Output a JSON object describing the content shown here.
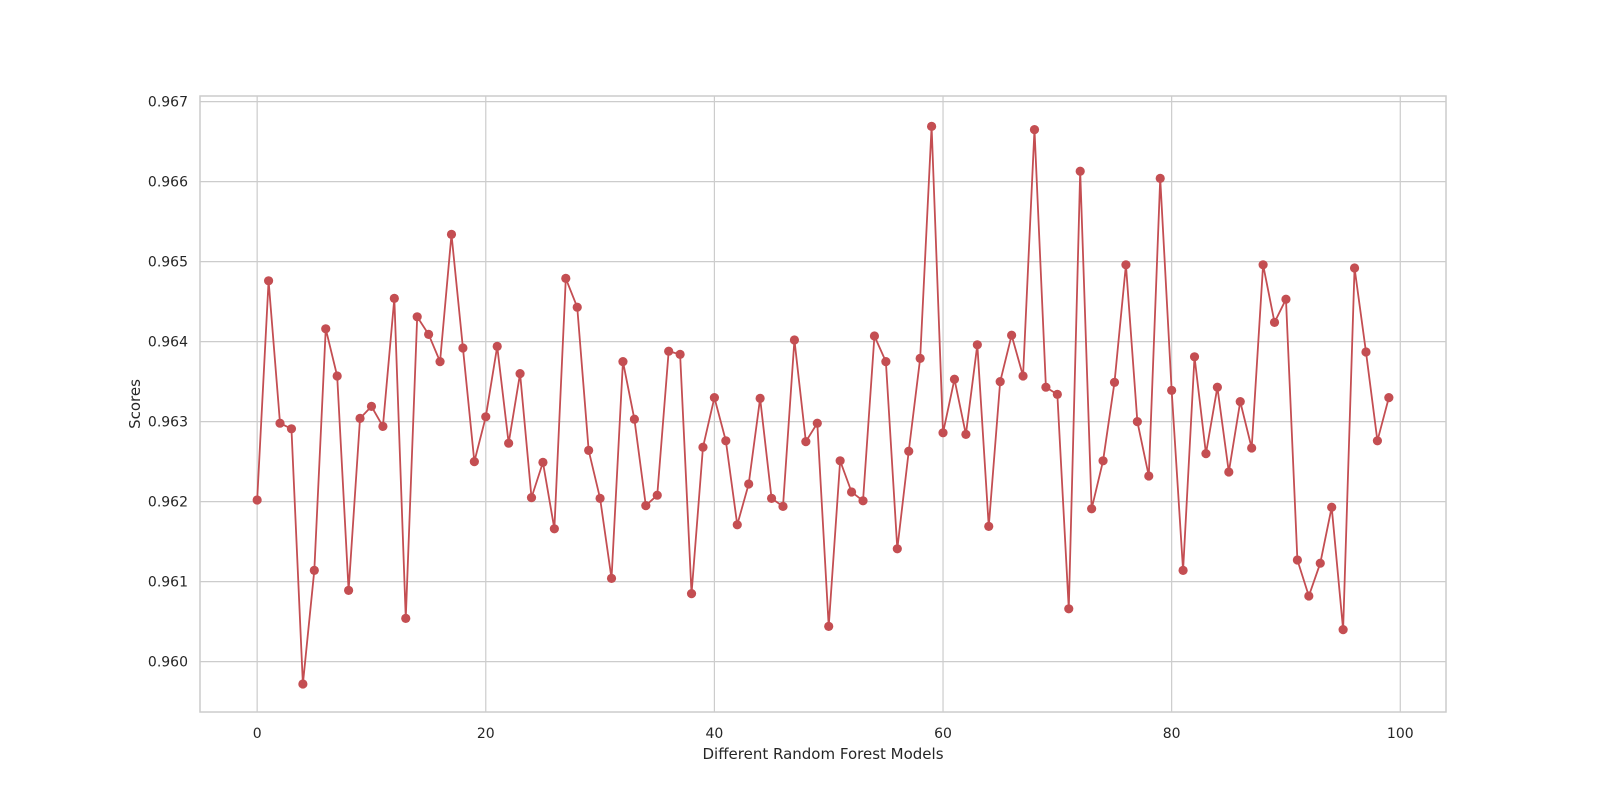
{
  "chart_data": {
    "type": "line",
    "title": "",
    "xlabel": "Different Random Forest Models",
    "ylabel": "Scores",
    "xlim": [
      -5,
      104
    ],
    "ylim": [
      0.95937,
      0.96707
    ],
    "xticks": [
      0,
      20,
      40,
      60,
      80,
      100
    ],
    "xtick_labels": [
      "0",
      "20",
      "40",
      "60",
      "80",
      "100"
    ],
    "yticks": [
      0.96,
      0.961,
      0.962,
      0.963,
      0.964,
      0.965,
      0.966,
      0.967
    ],
    "ytick_labels": [
      "0.960",
      "0.961",
      "0.962",
      "0.963",
      "0.964",
      "0.965",
      "0.966",
      "0.967"
    ],
    "grid": true,
    "legend": "none",
    "colors": {
      "series": "#c44e52",
      "grid": "#cccccc",
      "text": "#262626"
    },
    "x": [
      0,
      1,
      2,
      3,
      4,
      5,
      6,
      7,
      8,
      9,
      10,
      11,
      12,
      13,
      14,
      15,
      16,
      17,
      18,
      19,
      20,
      21,
      22,
      23,
      24,
      25,
      26,
      27,
      28,
      29,
      30,
      31,
      32,
      33,
      34,
      35,
      36,
      37,
      38,
      39,
      40,
      41,
      42,
      43,
      44,
      45,
      46,
      47,
      48,
      49,
      50,
      51,
      52,
      53,
      54,
      55,
      56,
      57,
      58,
      59,
      60,
      61,
      62,
      63,
      64,
      65,
      66,
      67,
      68,
      69,
      70,
      71,
      72,
      73,
      74,
      75,
      76,
      77,
      78,
      79,
      80,
      81,
      82,
      83,
      84,
      85,
      86,
      87,
      88,
      89,
      90,
      91,
      92,
      93,
      94,
      95,
      96,
      97,
      98,
      99
    ],
    "series": [
      {
        "values": [
          0.96202,
          0.96476,
          0.96298,
          0.96291,
          0.95972,
          0.96114,
          0.96416,
          0.96357,
          0.96089,
          0.96304,
          0.96319,
          0.96294,
          0.96454,
          0.96054,
          0.96431,
          0.96409,
          0.96375,
          0.96534,
          0.96392,
          0.9625,
          0.96306,
          0.96394,
          0.96273,
          0.9636,
          0.96205,
          0.96249,
          0.96166,
          0.96479,
          0.96443,
          0.96264,
          0.96204,
          0.96104,
          0.96375,
          0.96303,
          0.96195,
          0.96208,
          0.96388,
          0.96384,
          0.96085,
          0.96268,
          0.9633,
          0.96276,
          0.96171,
          0.96222,
          0.96329,
          0.96204,
          0.96194,
          0.96402,
          0.96275,
          0.96298,
          0.96044,
          0.96251,
          0.96212,
          0.96201,
          0.96407,
          0.96375,
          0.96141,
          0.96263,
          0.96379,
          0.96669,
          0.96286,
          0.96353,
          0.96284,
          0.96396,
          0.96169,
          0.9635,
          0.96408,
          0.96357,
          0.96665,
          0.96343,
          0.96334,
          0.96066,
          0.96613,
          0.96191,
          0.96251,
          0.96349,
          0.96496,
          0.963,
          0.96232,
          0.96604,
          0.96339,
          0.96114,
          0.96381,
          0.9626,
          0.96343,
          0.96237,
          0.96325,
          0.96267,
          0.96496,
          0.96424,
          0.96453,
          0.96127,
          0.96082,
          0.96123,
          0.96193,
          0.9604,
          0.96492,
          0.96387,
          0.96276,
          0.9633
        ]
      }
    ]
  }
}
